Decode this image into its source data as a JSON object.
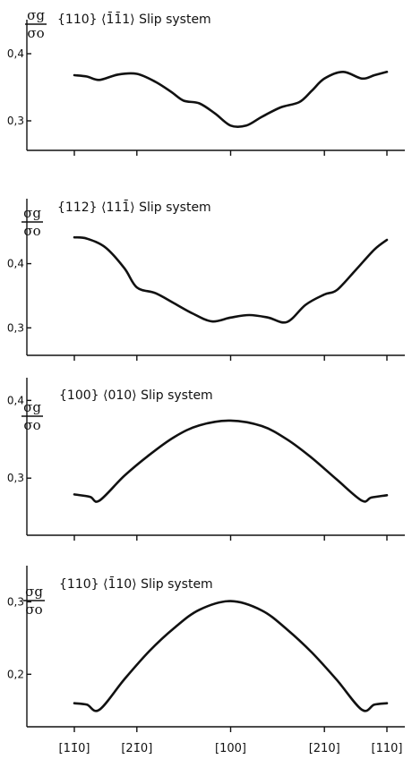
{
  "chart_data": [
    {
      "type": "line",
      "title": "{110} ⟨1̄1̄1⟩ Slip system",
      "ylabel_num": "σg",
      "ylabel_den": "σo",
      "yticks": [
        0.4,
        0.3
      ],
      "ytick_labels": [
        "0,4",
        "0,3"
      ],
      "ylim": [
        0.26,
        0.44
      ],
      "x": [
        0,
        0.2,
        0.4,
        0.7,
        1.0,
        1.3,
        1.55,
        1.75,
        2.0,
        2.25,
        2.5,
        2.75,
        3.0,
        3.3,
        3.6,
        3.8,
        4.0,
        4.3,
        4.6,
        4.8,
        5.0
      ],
      "values": [
        0.368,
        0.366,
        0.361,
        0.369,
        0.37,
        0.358,
        0.343,
        0.33,
        0.326,
        0.311,
        0.293,
        0.293,
        0.306,
        0.32,
        0.328,
        0.345,
        0.363,
        0.373,
        0.363,
        0.368,
        0.373
      ]
    },
    {
      "type": "line",
      "title": "{112} ⟨111̄⟩     Slip system",
      "ylabel_num": "σg",
      "ylabel_den": "σo",
      "yticks": [
        0.4,
        0.3
      ],
      "ytick_labels": [
        "0,4",
        "0,3"
      ],
      "ylim": [
        0.26,
        0.49
      ],
      "x": [
        0,
        0.2,
        0.5,
        0.8,
        1.0,
        1.3,
        1.6,
        1.9,
        2.2,
        2.5,
        2.8,
        3.1,
        3.4,
        3.7,
        4.0,
        4.2,
        4.5,
        4.8,
        5.0
      ],
      "values": [
        0.441,
        0.439,
        0.425,
        0.393,
        0.363,
        0.354,
        0.338,
        0.322,
        0.31,
        0.316,
        0.32,
        0.316,
        0.309,
        0.336,
        0.352,
        0.359,
        0.39,
        0.422,
        0.437
      ]
    },
    {
      "type": "line",
      "title": "{100} ⟨010⟩ Slip system",
      "ylabel_num": "σg",
      "ylabel_den": "σo",
      "yticks": [
        0.4,
        0.3
      ],
      "ytick_labels": [
        "0,4",
        "0,3"
      ],
      "ylim": [
        0.23,
        0.42
      ],
      "x": [
        0,
        0.25,
        0.4,
        0.8,
        1.2,
        1.6,
        2.0,
        2.5,
        3.0,
        3.4,
        3.8,
        4.2,
        4.6,
        4.75,
        5.0
      ],
      "values": [
        0.279,
        0.276,
        0.271,
        0.303,
        0.33,
        0.353,
        0.368,
        0.374,
        0.367,
        0.35,
        0.326,
        0.298,
        0.271,
        0.275,
        0.278
      ]
    },
    {
      "type": "line",
      "title": "{110} ⟨1̄10⟩ Slip system",
      "ylabel_num": "σg",
      "ylabel_den": "σo",
      "yticks": [
        0.3,
        0.2
      ],
      "ytick_labels": [
        "0,3",
        "0,2"
      ],
      "ylim": [
        0.13,
        0.34
      ],
      "x": [
        0,
        0.2,
        0.4,
        0.8,
        1.2,
        1.6,
        2.0,
        2.5,
        3.0,
        3.4,
        3.8,
        4.2,
        4.6,
        4.8,
        5.0
      ],
      "values": [
        0.16,
        0.158,
        0.151,
        0.193,
        0.232,
        0.264,
        0.289,
        0.301,
        0.288,
        0.262,
        0.23,
        0.192,
        0.151,
        0.158,
        0.16
      ]
    }
  ],
  "x_categories": [
    "[11̄0]",
    "[21̄0]",
    "[100]",
    "[210]",
    "[110]"
  ],
  "x_category_positions": [
    0,
    1.0,
    2.5,
    4.0,
    5.0
  ]
}
